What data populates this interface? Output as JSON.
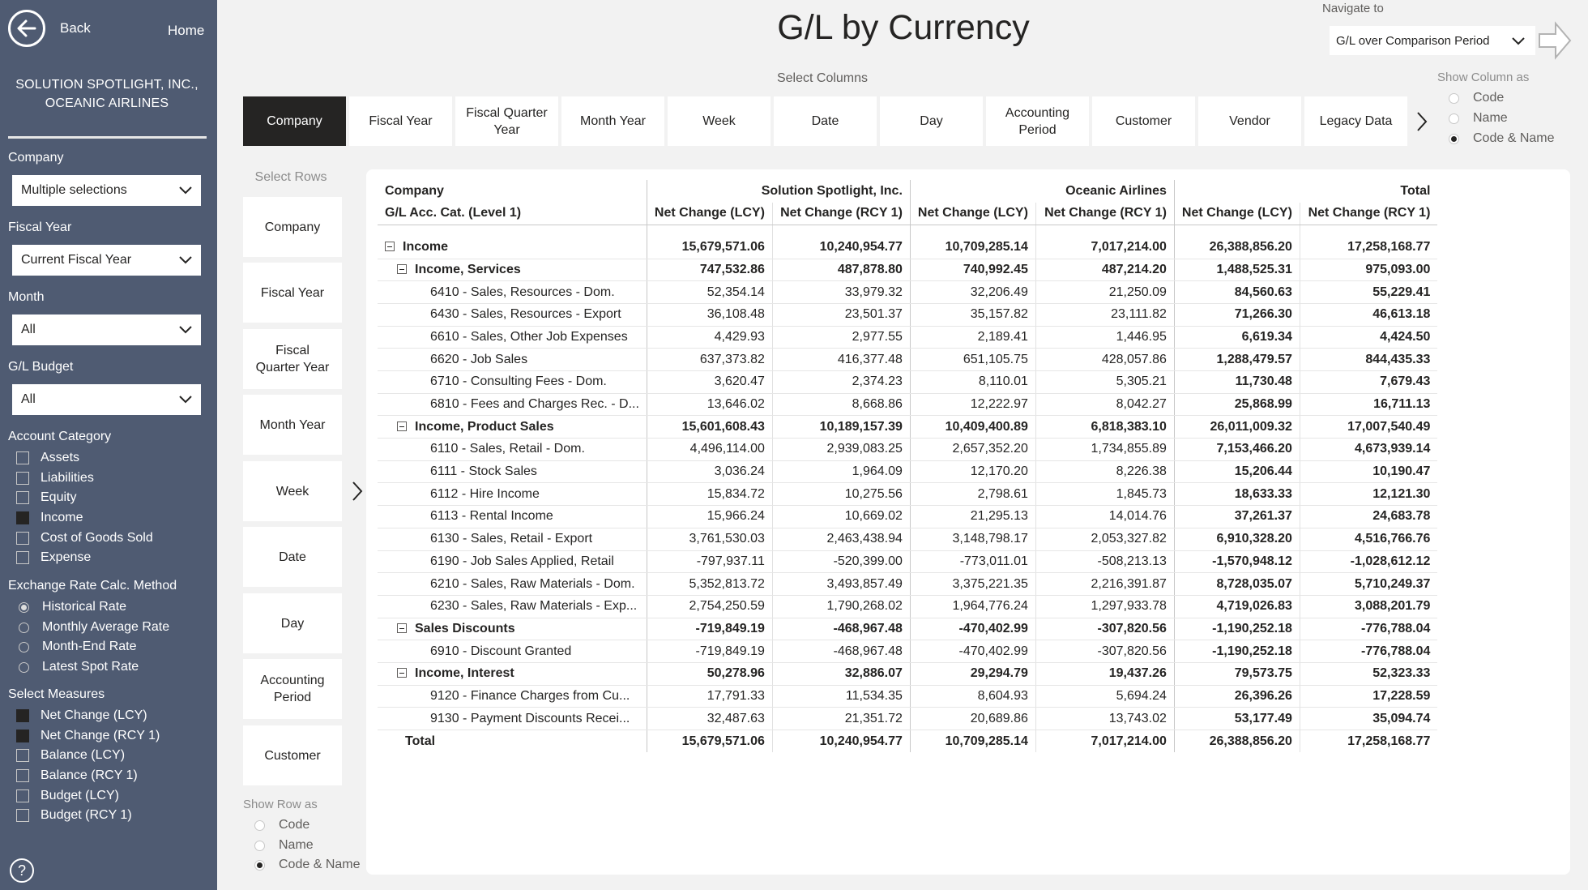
{
  "sidebar": {
    "back_label": "Back",
    "home_label": "Home",
    "company_lines": [
      "SOLUTION SPOTLIGHT, INC.,",
      "OCEANIC AIRLINES"
    ],
    "filters": {
      "company": {
        "label": "Company",
        "value": "Multiple selections"
      },
      "fiscal_year": {
        "label": "Fiscal Year",
        "value": "Current Fiscal Year"
      },
      "month": {
        "label": "Month",
        "value": "All"
      },
      "gl_budget": {
        "label": "G/L Budget",
        "value": "All"
      }
    },
    "account_category": {
      "label": "Account Category",
      "items": [
        {
          "label": "Assets",
          "checked": false
        },
        {
          "label": "Liabilities",
          "checked": false
        },
        {
          "label": "Equity",
          "checked": false
        },
        {
          "label": "Income",
          "checked": true
        },
        {
          "label": "Cost of Goods Sold",
          "checked": false
        },
        {
          "label": "Expense",
          "checked": false
        }
      ]
    },
    "exchange_rate": {
      "label": "Exchange Rate Calc. Method",
      "items": [
        {
          "label": "Historical Rate",
          "selected": true
        },
        {
          "label": "Monthly Average Rate",
          "selected": false
        },
        {
          "label": "Month-End Rate",
          "selected": false
        },
        {
          "label": "Latest Spot Rate",
          "selected": false
        }
      ]
    },
    "measures": {
      "label": "Select Measures",
      "items": [
        {
          "label": "Net Change (LCY)",
          "checked": true
        },
        {
          "label": "Net Change (RCY 1)",
          "checked": true
        },
        {
          "label": "Balance (LCY)",
          "checked": false
        },
        {
          "label": "Balance (RCY 1)",
          "checked": false
        },
        {
          "label": "Budget (LCY)",
          "checked": false
        },
        {
          "label": "Budget (RCY 1)",
          "checked": false
        }
      ]
    },
    "help": "?"
  },
  "header": {
    "title": "G/L by Currency",
    "navigate_label": "Navigate to",
    "navigate_value": "G/L over Comparison Period"
  },
  "columns": {
    "label": "Select Columns",
    "tabs": [
      "Company",
      "Fiscal Year",
      "Fiscal Quarter Year",
      "Month Year",
      "Week",
      "Date",
      "Day",
      "Accounting Period",
      "Customer",
      "Vendor",
      "Legacy Data"
    ],
    "active": 0,
    "show_label": "Show Column as",
    "show_options": [
      {
        "label": "Code",
        "selected": false
      },
      {
        "label": "Name",
        "selected": false
      },
      {
        "label": "Code & Name",
        "selected": true
      }
    ]
  },
  "rows": {
    "label": "Select Rows",
    "tiles": [
      "Company",
      "Fiscal Year",
      "Fiscal Quarter Year",
      "Month Year",
      "Week",
      "Date",
      "Day",
      "Accounting Period",
      "Customer"
    ],
    "show_label": "Show Row as",
    "show_options": [
      {
        "label": "Code",
        "selected": false
      },
      {
        "label": "Name",
        "selected": false
      },
      {
        "label": "Code & Name",
        "selected": true
      }
    ]
  },
  "matrix": {
    "col_dim_label": "Company",
    "row_dim_label": "G/L Acc. Cat. (Level 1)",
    "groups": [
      "Solution Spotlight, Inc.",
      "Oceanic Airlines",
      "Total"
    ],
    "measures": [
      "Net Change (LCY)",
      "Net Change (RCY 1)",
      "Net Change (LCY)",
      "Net Change (RCY 1)",
      "Net Change (LCY)",
      "Net Change (RCY 1)"
    ],
    "rows": [
      {
        "level": 0,
        "label": "Income",
        "values": [
          "15,679,571.06",
          "10,240,954.77",
          "10,709,285.14",
          "7,017,214.00",
          "26,388,856.20",
          "17,258,168.77"
        ]
      },
      {
        "level": 1,
        "label": "Income, Services",
        "values": [
          "747,532.86",
          "487,878.80",
          "740,992.45",
          "487,214.20",
          "1,488,525.31",
          "975,093.00"
        ]
      },
      {
        "level": 2,
        "label": "6410 - Sales, Resources - Dom.",
        "values": [
          "52,354.14",
          "33,979.32",
          "32,206.49",
          "21,250.09",
          "84,560.63",
          "55,229.41"
        ]
      },
      {
        "level": 2,
        "label": "6430 - Sales, Resources - Export",
        "values": [
          "36,108.48",
          "23,501.37",
          "35,157.82",
          "23,111.82",
          "71,266.30",
          "46,613.18"
        ]
      },
      {
        "level": 2,
        "label": "6610 - Sales, Other Job Expenses",
        "values": [
          "4,429.93",
          "2,977.55",
          "2,189.41",
          "1,446.95",
          "6,619.34",
          "4,424.50"
        ]
      },
      {
        "level": 2,
        "label": "6620 - Job Sales",
        "values": [
          "637,373.82",
          "416,377.48",
          "651,105.75",
          "428,057.86",
          "1,288,479.57",
          "844,435.33"
        ]
      },
      {
        "level": 2,
        "label": "6710 - Consulting Fees - Dom.",
        "values": [
          "3,620.47",
          "2,374.23",
          "8,110.01",
          "5,305.21",
          "11,730.48",
          "7,679.43"
        ]
      },
      {
        "level": 2,
        "label": "6810 - Fees and Charges Rec. - D...",
        "values": [
          "13,646.02",
          "8,668.86",
          "12,222.97",
          "8,042.27",
          "25,868.99",
          "16,711.13"
        ]
      },
      {
        "level": 1,
        "label": "Income, Product Sales",
        "values": [
          "15,601,608.43",
          "10,189,157.39",
          "10,409,400.89",
          "6,818,383.10",
          "26,011,009.32",
          "17,007,540.49"
        ]
      },
      {
        "level": 2,
        "label": "6110 - Sales, Retail - Dom.",
        "values": [
          "4,496,114.00",
          "2,939,083.25",
          "2,657,352.20",
          "1,734,855.89",
          "7,153,466.20",
          "4,673,939.14"
        ]
      },
      {
        "level": 2,
        "label": "6111 - Stock Sales",
        "values": [
          "3,036.24",
          "1,964.09",
          "12,170.20",
          "8,226.38",
          "15,206.44",
          "10,190.47"
        ]
      },
      {
        "level": 2,
        "label": "6112 - Hire Income",
        "values": [
          "15,834.72",
          "10,275.56",
          "2,798.61",
          "1,845.73",
          "18,633.33",
          "12,121.30"
        ]
      },
      {
        "level": 2,
        "label": "6113 - Rental Income",
        "values": [
          "15,966.24",
          "10,669.02",
          "21,295.13",
          "14,014.76",
          "37,261.37",
          "24,683.78"
        ]
      },
      {
        "level": 2,
        "label": "6130 - Sales, Retail - Export",
        "values": [
          "3,761,530.03",
          "2,463,438.94",
          "3,148,798.17",
          "2,053,327.82",
          "6,910,328.20",
          "4,516,766.76"
        ]
      },
      {
        "level": 2,
        "label": "6190 - Job Sales Applied, Retail",
        "values": [
          "-797,937.11",
          "-520,399.00",
          "-773,011.01",
          "-508,213.13",
          "-1,570,948.12",
          "-1,028,612.12"
        ]
      },
      {
        "level": 2,
        "label": "6210 - Sales, Raw Materials - Dom.",
        "values": [
          "5,352,813.72",
          "3,493,857.49",
          "3,375,221.35",
          "2,216,391.87",
          "8,728,035.07",
          "5,710,249.37"
        ]
      },
      {
        "level": 2,
        "label": "6230 - Sales, Raw Materials - Exp...",
        "values": [
          "2,754,250.59",
          "1,790,268.02",
          "1,964,776.24",
          "1,297,933.78",
          "4,719,026.83",
          "3,088,201.79"
        ]
      },
      {
        "level": 1,
        "label": "Sales Discounts",
        "values": [
          "-719,849.19",
          "-468,967.48",
          "-470,402.99",
          "-307,820.56",
          "-1,190,252.18",
          "-776,788.04"
        ]
      },
      {
        "level": 2,
        "label": "6910 - Discount Granted",
        "values": [
          "-719,849.19",
          "-468,967.48",
          "-470,402.99",
          "-307,820.56",
          "-1,190,252.18",
          "-776,788.04"
        ]
      },
      {
        "level": 1,
        "label": "Income, Interest",
        "values": [
          "50,278.96",
          "32,886.07",
          "29,294.79",
          "19,437.26",
          "79,573.75",
          "52,323.33"
        ]
      },
      {
        "level": 2,
        "label": "9120 - Finance Charges from Cu...",
        "values": [
          "17,791.33",
          "11,534.35",
          "8,604.93",
          "5,694.24",
          "26,396.26",
          "17,228.59"
        ]
      },
      {
        "level": 2,
        "label": "9130 - Payment Discounts Recei...",
        "values": [
          "32,487.63",
          "21,351.72",
          "20,689.86",
          "13,743.02",
          "53,177.49",
          "35,094.74"
        ]
      }
    ],
    "total": {
      "label": "Total",
      "values": [
        "15,679,571.06",
        "10,240,954.77",
        "10,709,285.14",
        "7,017,214.00",
        "26,388,856.20",
        "17,258,168.77"
      ]
    }
  }
}
